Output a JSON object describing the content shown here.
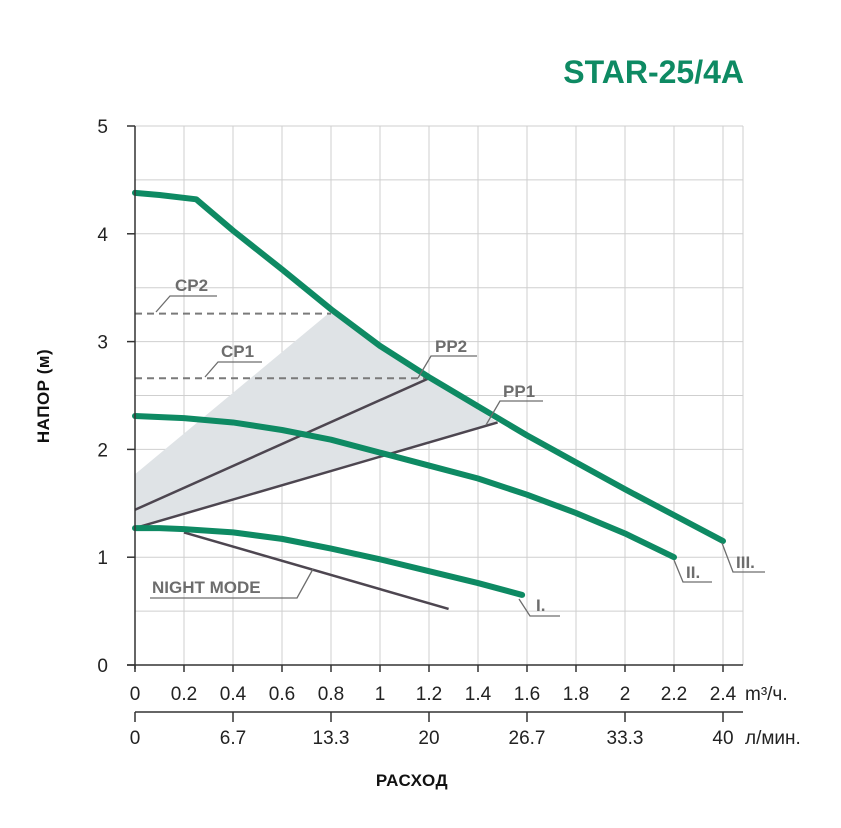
{
  "colors": {
    "curve": "#0e8a63",
    "system_line": "#4d4650",
    "region": "#dfe3e6",
    "grid": "#cfcfcf",
    "title": "#0e8a63",
    "annotation": "#6d6d6d"
  },
  "chart_data": {
    "type": "line",
    "title": "STAR-25/4A",
    "ylabel": "НАПОР (м)",
    "xlabel": "РАСХОД",
    "ylim": [
      0,
      5
    ],
    "xlim": [
      0,
      2.4
    ],
    "grid": true,
    "y_ticks": [
      "0",
      "1",
      "2",
      "3",
      "4",
      "5"
    ],
    "x_ticks_primary": [
      "0",
      "0.2",
      "0.4",
      "0.6",
      "0.8",
      "1",
      "1.2",
      "1.4",
      "1.6",
      "1.8",
      "2",
      "2.2",
      "2.4"
    ],
    "x_unit_primary": "m³/ч.",
    "x_ticks_secondary": [
      {
        "at": 0,
        "label": "0"
      },
      {
        "at": 0.4,
        "label": "6.7"
      },
      {
        "at": 0.8,
        "label": "13.3"
      },
      {
        "at": 1.2,
        "label": "20"
      },
      {
        "at": 1.6,
        "label": "26.7"
      },
      {
        "at": 2.0,
        "label": "33.3"
      },
      {
        "at": 2.4,
        "label": "40"
      }
    ],
    "x_unit_secondary": "л/мин.",
    "series": [
      {
        "name": "I.",
        "x": [
          0,
          0.1,
          0.2,
          0.4,
          0.6,
          0.8,
          1.0,
          1.2,
          1.4,
          1.58
        ],
        "y": [
          1.27,
          1.27,
          1.26,
          1.23,
          1.17,
          1.08,
          0.98,
          0.87,
          0.76,
          0.65
        ]
      },
      {
        "name": "II.",
        "x": [
          0,
          0.2,
          0.4,
          0.6,
          0.8,
          1.0,
          1.2,
          1.4,
          1.6,
          1.8,
          2.0,
          2.2
        ],
        "y": [
          2.31,
          2.29,
          2.25,
          2.18,
          2.09,
          1.97,
          1.85,
          1.73,
          1.58,
          1.41,
          1.22,
          1.0
        ]
      },
      {
        "name": "III.",
        "x": [
          0,
          0.1,
          0.25,
          0.4,
          0.6,
          0.8,
          1.0,
          1.2,
          1.4,
          1.6,
          1.8,
          2.0,
          2.2,
          2.4
        ],
        "y": [
          4.38,
          4.36,
          4.32,
          4.03,
          3.67,
          3.3,
          2.96,
          2.67,
          2.4,
          2.13,
          1.88,
          1.63,
          1.39,
          1.15
        ]
      }
    ],
    "system_lines": [
      {
        "name": "PP2",
        "x": [
          0,
          1.2
        ],
        "y": [
          1.44,
          2.66
        ]
      },
      {
        "name": "PP1",
        "x": [
          0,
          1.48
        ],
        "y": [
          1.27,
          2.25
        ]
      },
      {
        "name": "NIGHT MODE",
        "x": [
          0.2,
          1.28
        ],
        "y": [
          1.23,
          0.52
        ]
      }
    ],
    "constant_pressure": [
      {
        "name": "CP2",
        "y": 3.26,
        "x_end": 0.8
      },
      {
        "name": "CP1",
        "y": 2.66,
        "x_end": 1.2
      }
    ],
    "shaded_region": {
      "x": [
        0,
        0,
        0.8,
        1.0,
        1.2,
        1.48,
        0
      ],
      "y": [
        1.27,
        1.77,
        3.28,
        2.96,
        2.67,
        2.25,
        1.27
      ]
    },
    "curve_labels": [
      "I.",
      "II.",
      "III."
    ]
  }
}
